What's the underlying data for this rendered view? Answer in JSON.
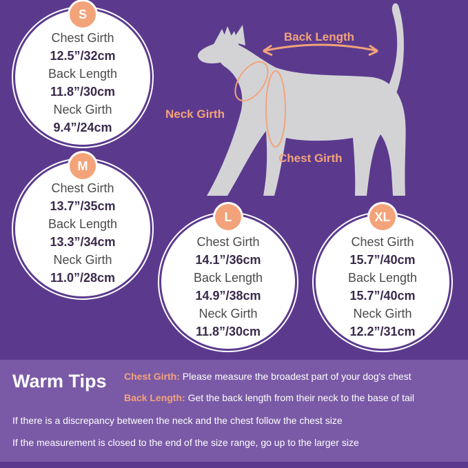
{
  "colors": {
    "background": "#5b3a8e",
    "accent": "#f3a37a",
    "tips_band": "#7a5aa6",
    "cat": "#d3d3d6"
  },
  "illustration": {
    "icon": "cat-silhouette-icon",
    "labels": {
      "back_length": "Back Length",
      "neck_girth": "Neck Girth",
      "chest_girth": "Chest Girth"
    }
  },
  "sizes": [
    {
      "badge": "S",
      "measurements": [
        {
          "label": "Chest Girth",
          "value": "12.5”/32cm"
        },
        {
          "label": "Back Length",
          "value": "11.8”/30cm"
        },
        {
          "label": "Neck Girth",
          "value": "9.4”/24cm"
        }
      ]
    },
    {
      "badge": "M",
      "measurements": [
        {
          "label": "Chest Girth",
          "value": "13.7”/35cm"
        },
        {
          "label": "Back Length",
          "value": "13.3”/34cm"
        },
        {
          "label": "Neck Girth",
          "value": "11.0”/28cm"
        }
      ]
    },
    {
      "badge": "L",
      "measurements": [
        {
          "label": "Chest Girth",
          "value": "14.1”/36cm"
        },
        {
          "label": "Back Length",
          "value": "14.9”/38cm"
        },
        {
          "label": "Neck Girth",
          "value": "11.8”/30cm"
        }
      ]
    },
    {
      "badge": "XL",
      "measurements": [
        {
          "label": "Chest Girth",
          "value": "15.7”/40cm"
        },
        {
          "label": "Back Length",
          "value": "15.7”/40cm"
        },
        {
          "label": "Neck Girth",
          "value": "12.2”/31cm"
        }
      ]
    }
  ],
  "warm_tips": {
    "title": "Warm Tips",
    "items": [
      {
        "key": "Chest Girth:",
        "text": " Please measure the broadest part of your dog's chest"
      },
      {
        "key": "Back Length:",
        "text": " Get the back length from their neck to the base of tail"
      }
    ],
    "notes": [
      "If there is a discrepancy between the neck and the chest follow the chest size",
      "If the measurement is closed to the end of the size range, go up to the larger size"
    ]
  }
}
